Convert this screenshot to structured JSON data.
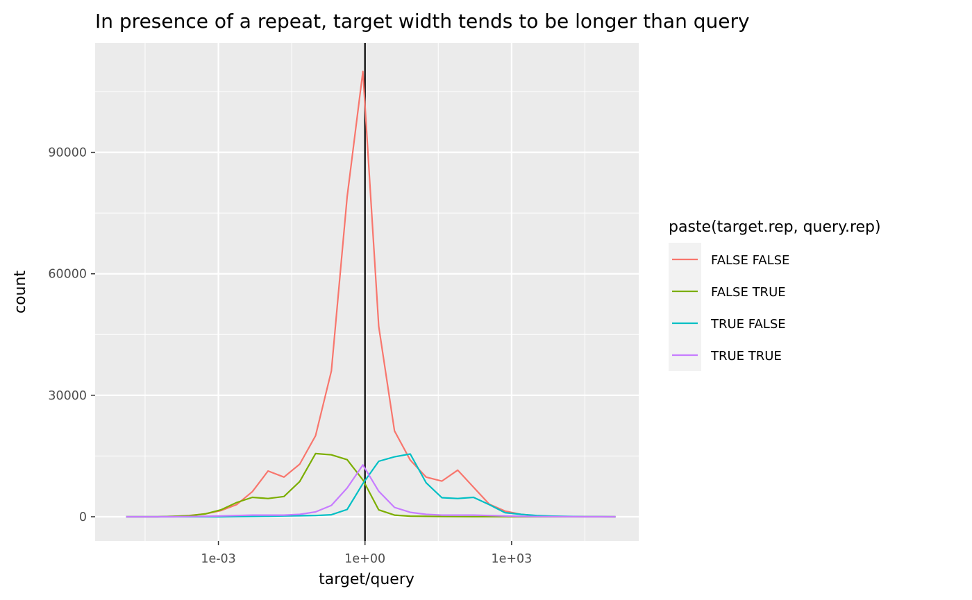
{
  "chart_data": {
    "type": "line",
    "title": "In presence of a repeat, target width tends to be longer than query",
    "xlabel": "target/query",
    "ylabel": "count",
    "x_scale": "log10",
    "xlim": [
      3e-06,
      400000.0
    ],
    "ylim": [
      -6000,
      117000
    ],
    "x_ticks": [
      {
        "value": 0.001,
        "label": "1e-03"
      },
      {
        "value": 1,
        "label": "1e+00"
      },
      {
        "value": 1000,
        "label": "1e+03"
      }
    ],
    "x_minor_ticks": [
      3.16e-05,
      0.0316,
      31.6,
      31600
    ],
    "y_ticks": [
      {
        "value": 0,
        "label": "0"
      },
      {
        "value": 30000,
        "label": "30000"
      },
      {
        "value": 60000,
        "label": "60000"
      },
      {
        "value": 90000,
        "label": "90000"
      }
    ],
    "y_minor_ticks": [
      15000,
      45000,
      75000,
      105000
    ],
    "reference_line": {
      "x": 1,
      "color": "#000000"
    },
    "grid": true,
    "legend": {
      "title": "paste(target.rep, query.rep)",
      "position": "right"
    },
    "x": [
      1.29e-05,
      2.71e-05,
      5.7e-05,
      0.00012,
      0.000253,
      0.000532,
      0.00112,
      0.00236,
      0.00496,
      0.0104,
      0.022,
      0.0462,
      0.0973,
      0.205,
      0.431,
      0.906,
      1.91,
      4.01,
      8.44,
      17.8,
      37.4,
      78.7,
      166,
      349,
      734,
      1545,
      3251,
      6843,
      14400,
      30310,
      63790,
      134300
    ],
    "series": [
      {
        "name": "FALSE FALSE",
        "color": "#F8766D",
        "values": [
          0,
          0,
          0,
          100,
          300,
          700,
          1500,
          3000,
          6200,
          11300,
          9800,
          13000,
          20000,
          36000,
          79000,
          110000,
          47000,
          21200,
          14000,
          9800,
          8800,
          11500,
          7300,
          3100,
          1400,
          600,
          250,
          100,
          50,
          20,
          10,
          0
        ]
      },
      {
        "name": "FALSE TRUE",
        "color": "#7CAE00",
        "values": [
          0,
          0,
          0,
          100,
          250,
          700,
          1700,
          3500,
          4800,
          4500,
          5000,
          8700,
          15600,
          15300,
          14100,
          9100,
          1700,
          400,
          150,
          100,
          50,
          30,
          20,
          10,
          5,
          0,
          0,
          0,
          0,
          0,
          0,
          0
        ]
      },
      {
        "name": "TRUE FALSE",
        "color": "#00BFC4",
        "values": [
          0,
          0,
          0,
          0,
          0,
          0,
          0,
          50,
          100,
          150,
          200,
          250,
          300,
          500,
          1800,
          8200,
          13700,
          14800,
          15500,
          8400,
          4700,
          4500,
          4800,
          3000,
          1000,
          600,
          300,
          150,
          80,
          30,
          10,
          0
        ]
      },
      {
        "name": "TRUE TRUE",
        "color": "#C77CFF",
        "values": [
          0,
          0,
          0,
          0,
          50,
          100,
          200,
          300,
          400,
          400,
          400,
          600,
          1200,
          2800,
          7100,
          12800,
          6300,
          2300,
          1100,
          600,
          400,
          400,
          400,
          300,
          200,
          100,
          50,
          30,
          10,
          0,
          0,
          0
        ]
      }
    ]
  }
}
